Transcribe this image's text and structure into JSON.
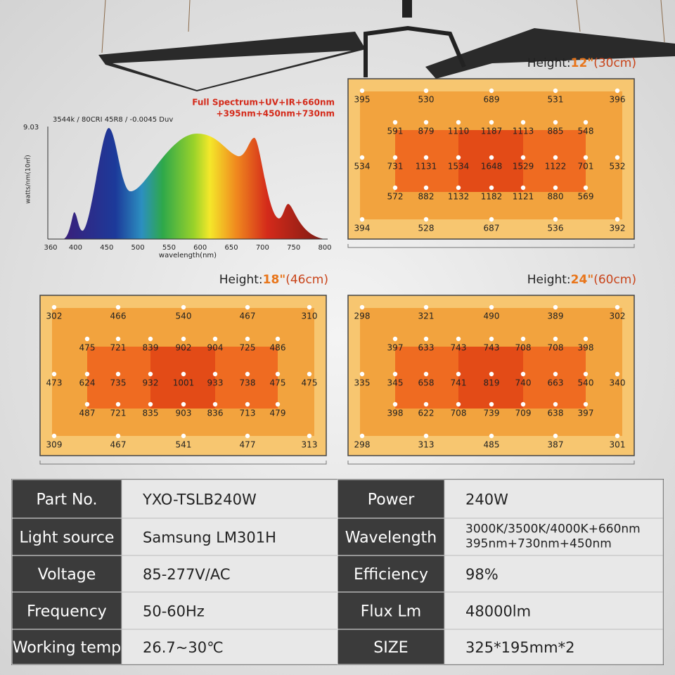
{
  "spectrum": {
    "headline": [
      "Full Spectrum+UV+IR+660nm",
      "+395nm+450nm+730nm"
    ],
    "note": "3544k / 80CRI 45R8 / -0.0045 Duv",
    "ymax": "9.03",
    "ylabel": "watts/nm(10㎡)",
    "xlabel": "wavelength(nm)",
    "xticks": [
      360,
      400,
      450,
      500,
      550,
      600,
      650,
      700,
      750,
      800
    ]
  },
  "maps": [
    {
      "height": {
        "label": "Height:",
        "value": "12\"",
        "metric": "(30cm)"
      },
      "rows": [
        [
          395,
          530,
          689,
          531,
          396
        ],
        [
          591,
          879,
          1110,
          1187,
          1113,
          885,
          548
        ],
        [
          534,
          731,
          1131,
          1534,
          1648,
          1529,
          1122,
          701,
          532
        ],
        [
          572,
          882,
          1132,
          1182,
          1121,
          880,
          569
        ],
        [
          394,
          528,
          687,
          536,
          392
        ]
      ]
    },
    {
      "height": {
        "label": "Height:",
        "value": "18\"",
        "metric": "(46cm)"
      },
      "rows": [
        [
          302,
          466,
          540,
          467,
          310
        ],
        [
          475,
          721,
          839,
          902,
          904,
          725,
          486
        ],
        [
          473,
          624,
          735,
          932,
          1001,
          933,
          738,
          475,
          475
        ],
        [
          487,
          721,
          835,
          903,
          836,
          713,
          479
        ],
        [
          309,
          467,
          541,
          477,
          313
        ]
      ]
    },
    {
      "height": {
        "label": "Height:",
        "value": "24\"",
        "metric": "(60cm)"
      },
      "rows": [
        [
          298,
          321,
          490,
          389,
          302
        ],
        [
          397,
          633,
          743,
          743,
          708,
          708,
          398
        ],
        [
          335,
          345,
          658,
          741,
          819,
          740,
          663,
          540,
          340
        ],
        [
          398,
          622,
          708,
          739,
          709,
          638,
          397
        ],
        [
          298,
          313,
          485,
          387,
          301
        ]
      ]
    }
  ],
  "specs": {
    "rows": [
      [
        "Part No.",
        "YXO-TSLB240W",
        "Power",
        "240W"
      ],
      [
        "Light source",
        "Samsung LM301H",
        "Wavelength",
        [
          "3000K/3500K/4000K+660nm",
          "395nm+730nm+450nm"
        ]
      ],
      [
        "Voltage",
        "85-277V/AC",
        "Efficiency",
        "98%"
      ],
      [
        "Frequency",
        "50-60Hz",
        "Flux Lm",
        "48000lm"
      ],
      [
        "Working temp",
        "26.7~30℃",
        "SIZE",
        "325*195mm*2"
      ]
    ]
  }
}
